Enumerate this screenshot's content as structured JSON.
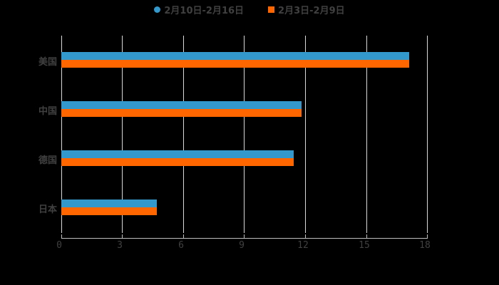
{
  "chart_data": {
    "type": "bar",
    "orientation": "horizontal",
    "title": "",
    "xlabel": "",
    "ylabel": "",
    "categories": [
      "美国",
      "中国",
      "德国",
      "日本"
    ],
    "series": [
      {
        "name": "2月10日-2月16日",
        "color": "#3399cc",
        "values": [
          17.1,
          11.8,
          11.4,
          4.7
        ]
      },
      {
        "name": "2月3日-2月9日",
        "color": "#ff6600",
        "values": [
          17.1,
          11.8,
          11.4,
          4.7
        ]
      }
    ],
    "xlim": [
      0,
      18
    ],
    "x_ticks": [
      "0",
      "3",
      "6",
      "9",
      "12",
      "15",
      "18"
    ],
    "grid": true,
    "legend_position": "top"
  },
  "legend": {
    "items": [
      {
        "label": "2月10日-2月16日",
        "color": "#3399cc",
        "marker": "circle"
      },
      {
        "label": "2月3日-2月9日",
        "color": "#ff6600",
        "marker": "square"
      }
    ]
  },
  "axis": {
    "ticks": [
      "0",
      "3",
      "6",
      "9",
      "12",
      "15",
      "18"
    ]
  },
  "categories": [
    "美国",
    "中国",
    "德国",
    "日本"
  ]
}
